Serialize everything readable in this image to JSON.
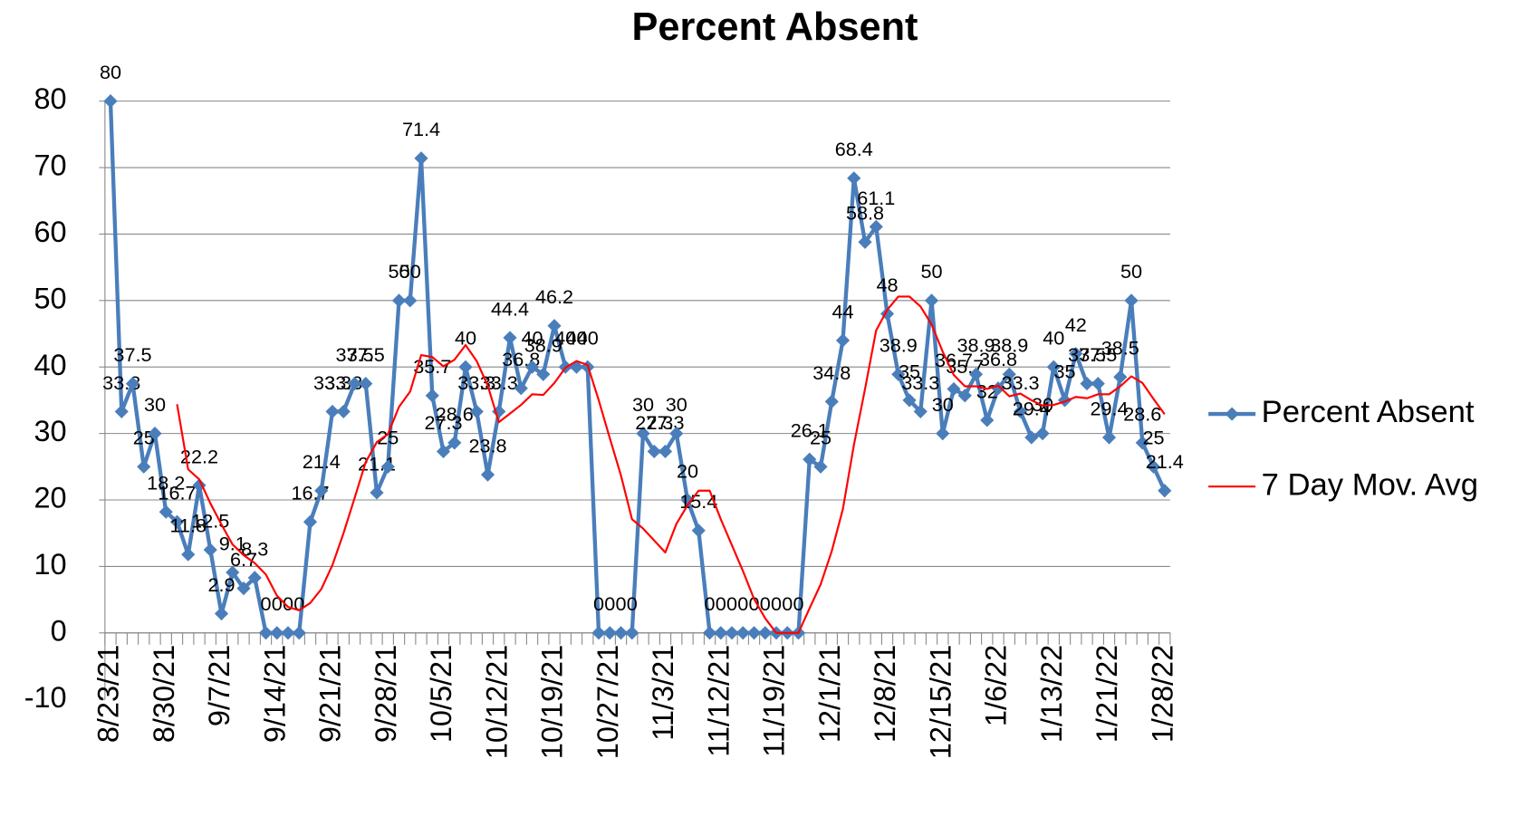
{
  "chart_data": {
    "type": "line",
    "title": "Percent Absent",
    "categories": [
      "8/23/21",
      null,
      null,
      null,
      null,
      "8/30/21",
      null,
      null,
      null,
      null,
      "9/7/21",
      null,
      null,
      null,
      null,
      "9/14/21",
      null,
      null,
      null,
      null,
      "9/21/21",
      null,
      null,
      null,
      null,
      "9/28/21",
      null,
      null,
      null,
      null,
      "10/5/21",
      null,
      null,
      null,
      null,
      "10/12/21",
      null,
      null,
      null,
      null,
      "10/19/21",
      null,
      null,
      null,
      null,
      "10/27/21",
      null,
      null,
      null,
      null,
      "11/3/21",
      null,
      null,
      null,
      null,
      "11/12/21",
      null,
      null,
      null,
      null,
      "11/19/21",
      null,
      null,
      null,
      null,
      "12/1/21",
      null,
      null,
      null,
      null,
      "12/8/21",
      null,
      null,
      null,
      null,
      "12/15/21",
      null,
      null,
      null,
      null,
      "1/6/22",
      null,
      null,
      null,
      null,
      "1/13/22",
      null,
      null,
      null,
      null,
      "1/21/22",
      null,
      null,
      null,
      null,
      "1/28/22"
    ],
    "series": [
      {
        "name": "Percent Absent",
        "color": "#4a7ebb",
        "marker": "diamond",
        "data_labels": true,
        "values": [
          80,
          33.3,
          37.5,
          25,
          30,
          18.2,
          16.7,
          11.8,
          22.2,
          12.5,
          2.9,
          9.1,
          6.7,
          8.3,
          0,
          0,
          0,
          0,
          16.7,
          21.4,
          33.3,
          33.3,
          37.5,
          37.5,
          21.1,
          25,
          50,
          50,
          71.4,
          35.7,
          27.3,
          28.6,
          40,
          33.3,
          23.8,
          33.3,
          44.4,
          36.8,
          40,
          38.9,
          46.2,
          40,
          40,
          40,
          0,
          0,
          0,
          0,
          30,
          27.3,
          27.3,
          30,
          20,
          15.4,
          0,
          0,
          0,
          0,
          0,
          0,
          0,
          0,
          0,
          26.1,
          25,
          34.8,
          44,
          68.4,
          58.8,
          61.1,
          48,
          38.9,
          35,
          33.3,
          50,
          30,
          36.7,
          35.7,
          38.9,
          32,
          36.8,
          38.9,
          33.3,
          29.4,
          30,
          40,
          35,
          42,
          37.5,
          37.5,
          29.4,
          38.5,
          50,
          28.6,
          25,
          21.4
        ]
      },
      {
        "name": "7 Day Mov. Avg",
        "color": "#ff0000",
        "marker": "none",
        "data_labels": false,
        "values": [
          null,
          null,
          null,
          null,
          null,
          null,
          34.4,
          24.6,
          23.1,
          19.5,
          16.3,
          13.3,
          11.7,
          10.5,
          8.8,
          5.6,
          3.9,
          3.4,
          4.5,
          6.6,
          10.2,
          15.0,
          20.3,
          25.7,
          28.7,
          29.9,
          34.0,
          36.3,
          41.8,
          41.5,
          40.1,
          41.1,
          43.3,
          40.9,
          37.2,
          31.7,
          33.0,
          34.3,
          35.9,
          35.8,
          37.6,
          39.9,
          40.9,
          40.3,
          35.0,
          29.3,
          23.7,
          17.1,
          15.7,
          13.9,
          12.1,
          16.4,
          19.2,
          21.4,
          21.4,
          17.1,
          13.2,
          9.3,
          5.1,
          2.2,
          0,
          0,
          0,
          3.7,
          7.3,
          12.3,
          18.6,
          28.3,
          36.7,
          45.5,
          48.6,
          50.6,
          50.6,
          49.1,
          46.4,
          42.3,
          38.8,
          37.1,
          37.1,
          36.7,
          37.2,
          35.6,
          36.0,
          35.0,
          34.2,
          34.3,
          34.8,
          35.5,
          35.3,
          35.9,
          35.9,
          37.1,
          38.6,
          37.6,
          35.2,
          32.9
        ]
      }
    ],
    "ylim": [
      -10,
      80
    ],
    "yticks": [
      -10,
      0,
      10,
      20,
      30,
      40,
      50,
      60,
      70,
      80
    ],
    "grid": true,
    "legend": "right"
  }
}
